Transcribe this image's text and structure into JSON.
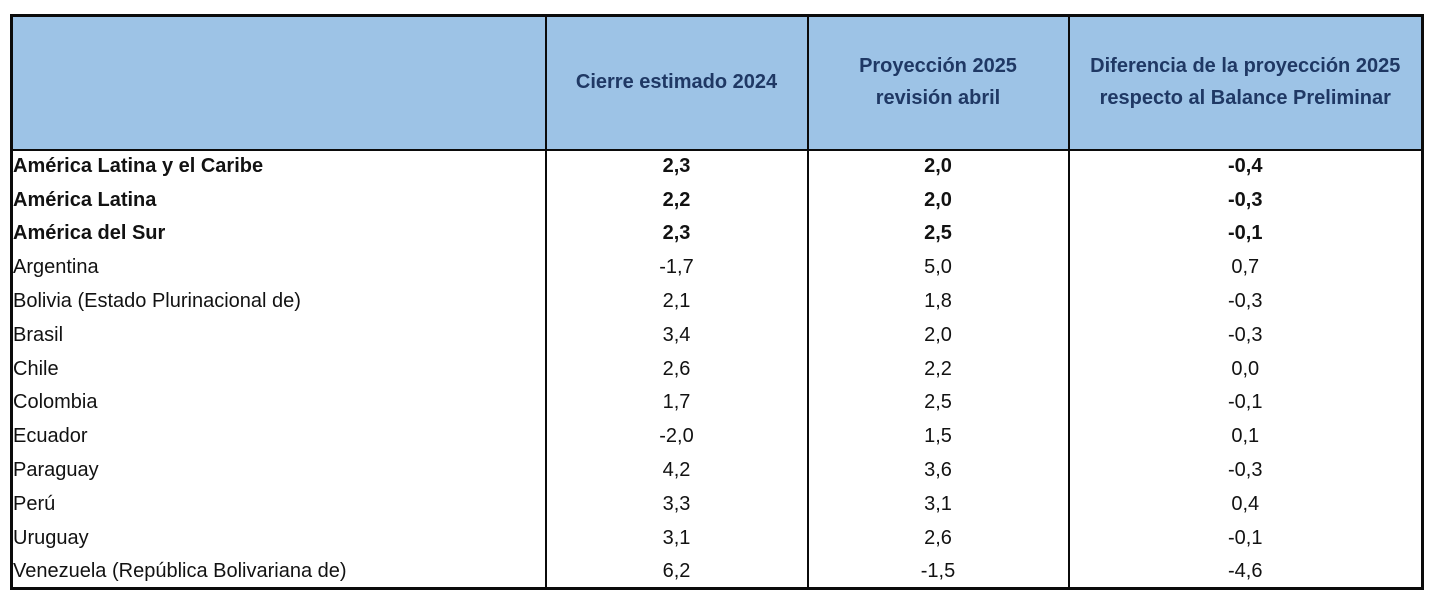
{
  "colors": {
    "header_bg": "#9DC3E6",
    "header_text": "#1F3864",
    "highlight_column_bg": "#DCE6F2",
    "border": "#0B0B0B",
    "body_text": "#121212"
  },
  "chart_data": {
    "type": "table",
    "columns": [
      "",
      "Cierre estimado 2024",
      "Proyección 2025 revisión abril",
      "Diferencia de la proyección 2025 respecto al Balance Preliminar"
    ],
    "rows": [
      {
        "label": "América Latina y el Caribe",
        "level": 0,
        "bold": true,
        "values": [
          "2,3",
          "2,0",
          "-0,4"
        ]
      },
      {
        "label": "América Latina",
        "level": 1,
        "bold": true,
        "values": [
          "2,2",
          "2,0",
          "-0,3"
        ]
      },
      {
        "label": "América del Sur",
        "level": 2,
        "bold": true,
        "values": [
          "2,3",
          "2,5",
          "-0,1"
        ]
      },
      {
        "label": "Argentina",
        "level": 3,
        "bold": false,
        "values": [
          "-1,7",
          "5,0",
          "0,7"
        ]
      },
      {
        "label": "Bolivia (Estado Plurinacional de)",
        "level": 3,
        "bold": false,
        "values": [
          "2,1",
          "1,8",
          "-0,3"
        ]
      },
      {
        "label": "Brasil",
        "level": 3,
        "bold": false,
        "values": [
          "3,4",
          "2,0",
          "-0,3"
        ]
      },
      {
        "label": "Chile",
        "level": 3,
        "bold": false,
        "values": [
          "2,6",
          "2,2",
          "0,0"
        ]
      },
      {
        "label": "Colombia",
        "level": 3,
        "bold": false,
        "values": [
          "1,7",
          "2,5",
          "-0,1"
        ]
      },
      {
        "label": "Ecuador",
        "level": 3,
        "bold": false,
        "values": [
          "-2,0",
          "1,5",
          "0,1"
        ]
      },
      {
        "label": "Paraguay",
        "level": 3,
        "bold": false,
        "values": [
          "4,2",
          "3,6",
          "-0,3"
        ]
      },
      {
        "label": "Perú",
        "level": 3,
        "bold": false,
        "values": [
          "3,3",
          "3,1",
          "0,4"
        ]
      },
      {
        "label": "Uruguay",
        "level": 3,
        "bold": false,
        "values": [
          "3,1",
          "2,6",
          "-0,1"
        ]
      },
      {
        "label": "Venezuela (República Bolivariana de)",
        "level": 3,
        "bold": false,
        "values": [
          "6,2",
          "-1,5",
          "-4,6"
        ]
      }
    ]
  }
}
